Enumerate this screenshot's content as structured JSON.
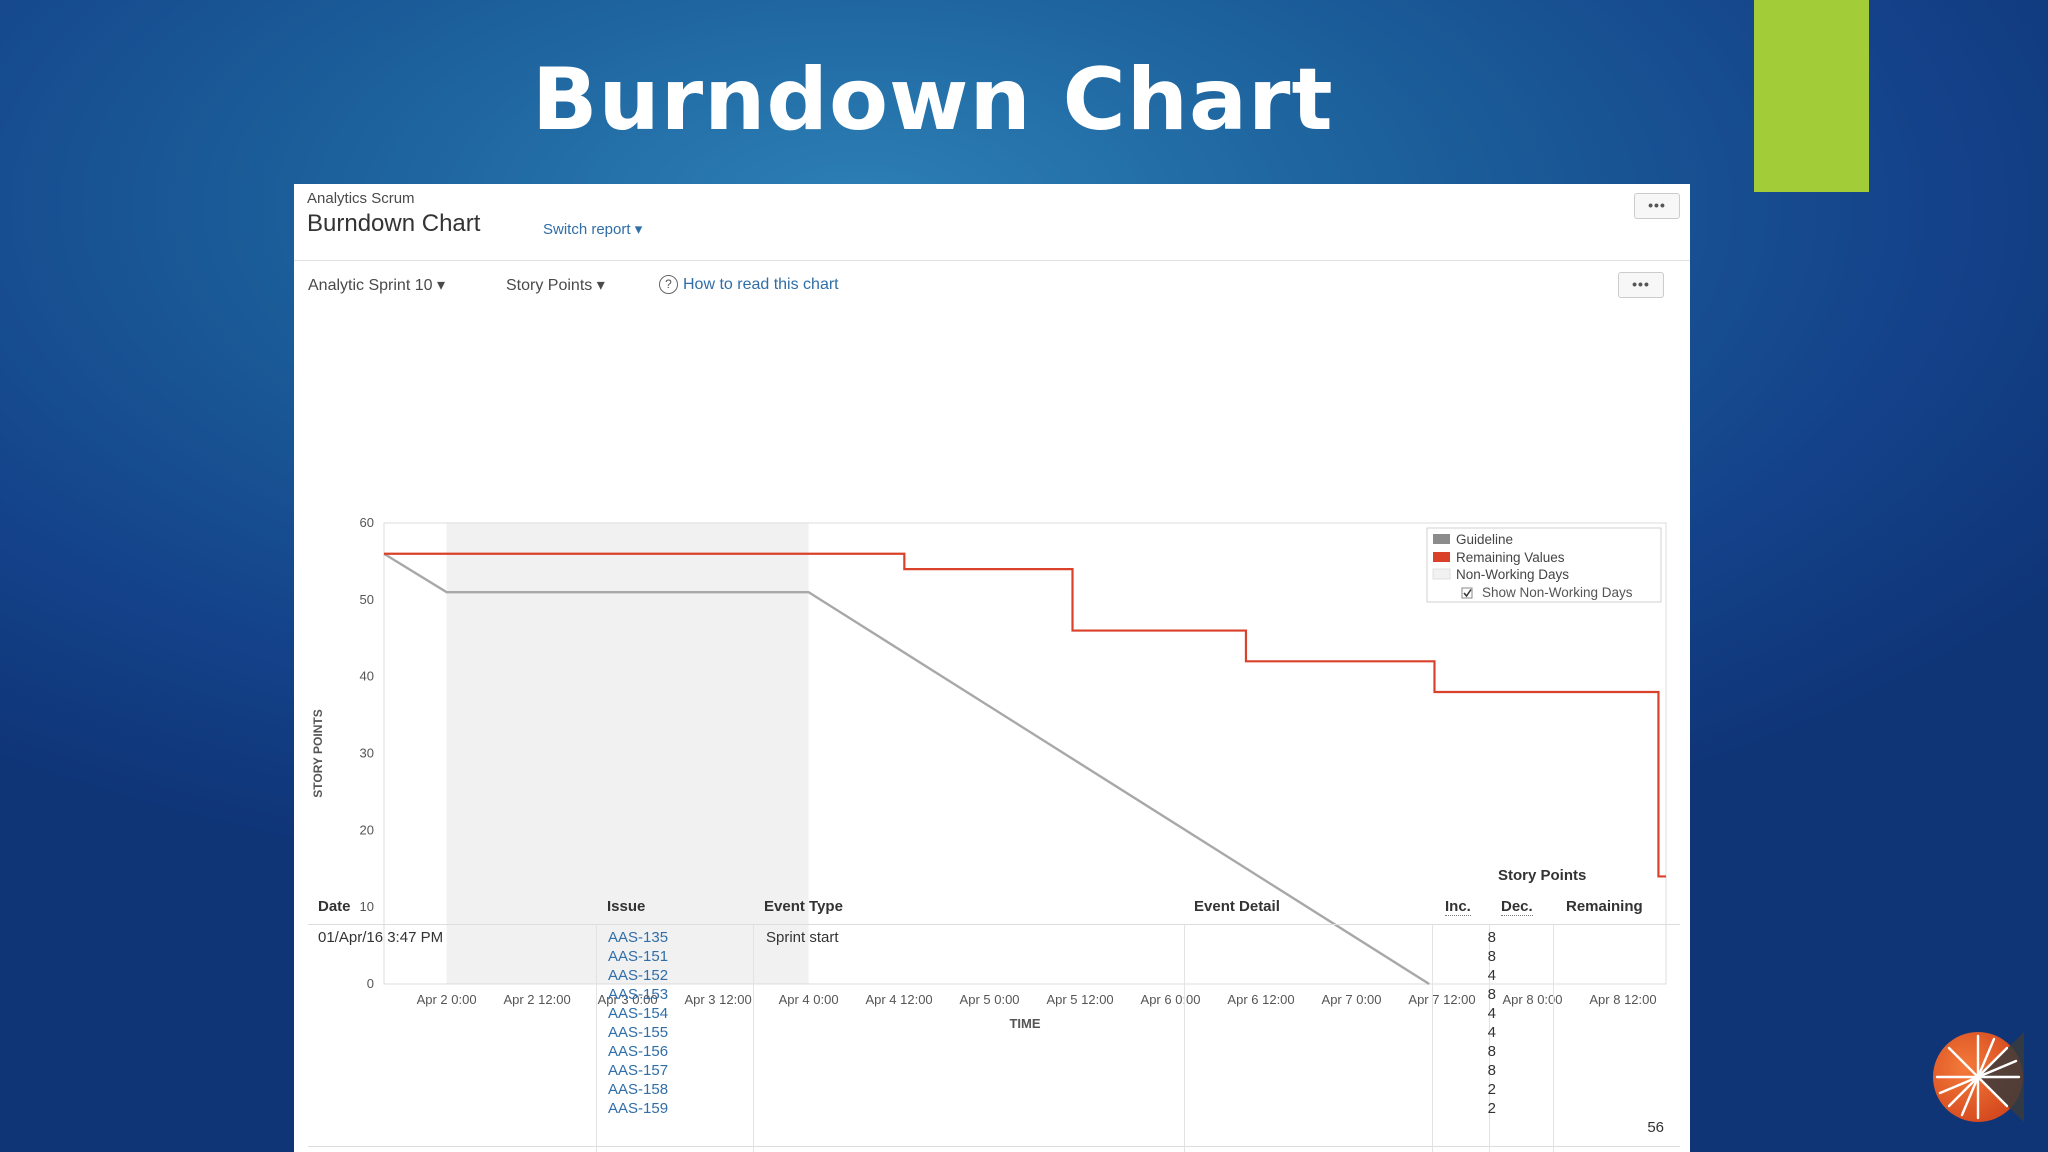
{
  "slide": {
    "title": "Burndown Chart"
  },
  "report": {
    "project": "Analytics Scrum",
    "title": "Burndown Chart",
    "switch_report": "Switch report ▾",
    "more_label": "•••"
  },
  "filters": {
    "sprint": "Analytic Sprint 10 ▾",
    "estimate": "Story Points ▾",
    "help_link": "How to read this chart",
    "help_icon": "?"
  },
  "colors": {
    "guideline": "#a8a8a8",
    "remaining": "#d9412b",
    "non_working": "#f1f1f1"
  },
  "chart_data": {
    "type": "line",
    "xlabel": "TIME",
    "ylabel": "STORY POINTS",
    "ylim": [
      0,
      60
    ],
    "yticks": [
      "0",
      "10",
      "20",
      "30",
      "40",
      "50",
      "60"
    ],
    "x_ticks": [
      "Apr 2 0:00",
      "Apr 2 12:00",
      "Apr 3 0:00",
      "Apr 3 12:00",
      "Apr 4 0:00",
      "Apr 4 12:00",
      "Apr 5 0:00",
      "Apr 5 12:00",
      "Apr 6 0:00",
      "Apr 6 12:00",
      "Apr 7 0:00",
      "Apr 7 12:00",
      "Apr 8 0:00",
      "Apr 8 12:00"
    ],
    "x_tick_hours": [
      24,
      36,
      48,
      60,
      72,
      84,
      96,
      108,
      120,
      132,
      144,
      156,
      168,
      180
    ],
    "xlim_hours": [
      15.7,
      185.7
    ],
    "non_working": [
      [
        24,
        72
      ]
    ],
    "legend": [
      "Guideline",
      "Remaining Values",
      "Non-Working Days",
      "Show Non-Working Days"
    ],
    "legend_position": "top-right",
    "series": [
      {
        "name": "Guideline",
        "step": false,
        "x": [
          15.7,
          24,
          72,
          154.3
        ],
        "y": [
          56,
          51,
          51,
          0
        ]
      },
      {
        "name": "Remaining Values",
        "step": true,
        "x": [
          15.7,
          84.7,
          107,
          130,
          155,
          184.7,
          185.7
        ],
        "y": [
          56,
          54,
          46,
          42,
          38,
          14,
          14
        ]
      }
    ]
  },
  "table": {
    "group_header": "Story Points",
    "headers": {
      "date": "Date",
      "issue": "Issue",
      "event_type": "Event Type",
      "event_detail": "Event Detail",
      "inc": "Inc.",
      "dec": "Dec.",
      "remaining": "Remaining"
    },
    "row": {
      "date": "01/Apr/16 3:47 PM",
      "event_type": "Sprint start",
      "remaining": "56",
      "items": [
        {
          "issue": "AAS-135",
          "inc": "8"
        },
        {
          "issue": "AAS-151",
          "inc": "8"
        },
        {
          "issue": "AAS-152",
          "inc": "4"
        },
        {
          "issue": "AAS-153",
          "inc": "8"
        },
        {
          "issue": "AAS-154",
          "inc": "4"
        },
        {
          "issue": "AAS-155",
          "inc": "4"
        },
        {
          "issue": "AAS-156",
          "inc": "8"
        },
        {
          "issue": "AAS-157",
          "inc": "8"
        },
        {
          "issue": "AAS-158",
          "inc": "2"
        },
        {
          "issue": "AAS-159",
          "inc": "2"
        }
      ]
    }
  }
}
